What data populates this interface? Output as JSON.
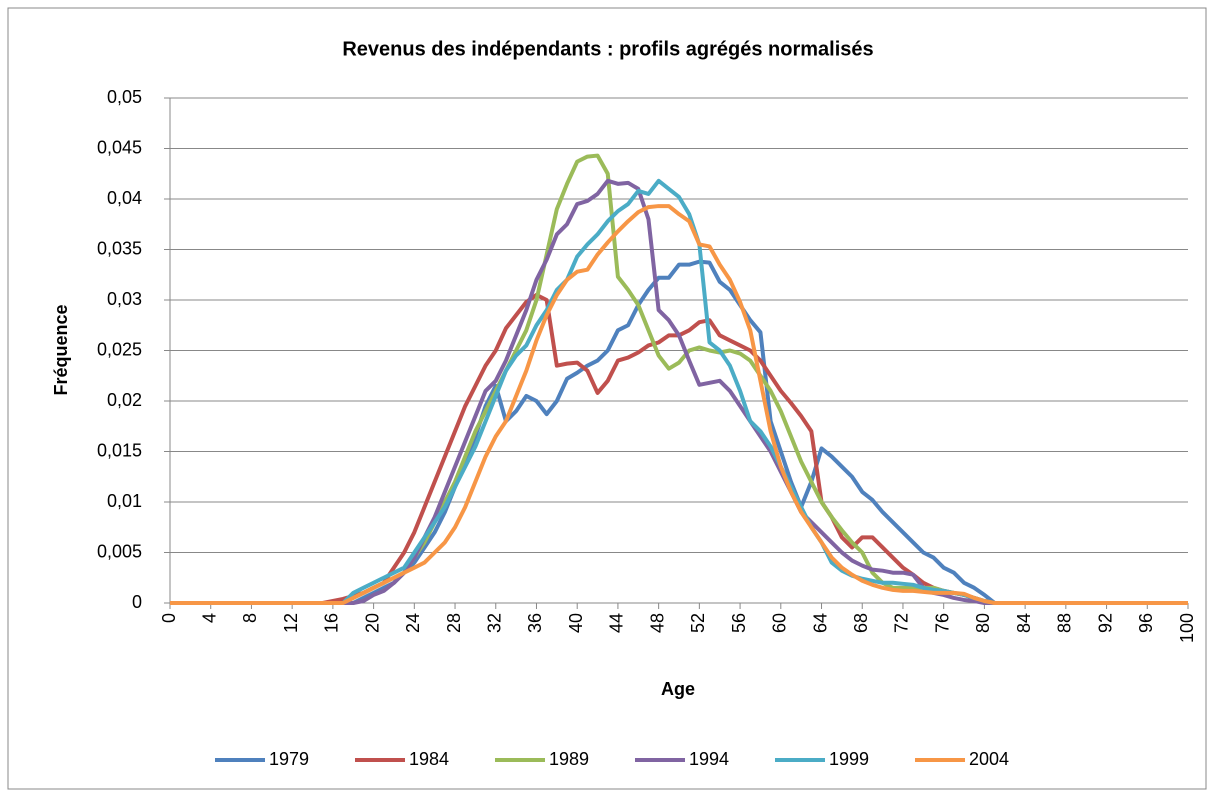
{
  "chart_data": {
    "type": "line",
    "title": "Revenus des indépendants : profils agrégés normalisés",
    "xlabel": "Age",
    "ylabel": "Fréquence",
    "x": [
      0,
      1,
      2,
      3,
      4,
      5,
      6,
      7,
      8,
      9,
      10,
      11,
      12,
      13,
      14,
      15,
      16,
      17,
      18,
      19,
      20,
      21,
      22,
      23,
      24,
      25,
      26,
      27,
      28,
      29,
      30,
      31,
      32,
      33,
      34,
      35,
      36,
      37,
      38,
      39,
      40,
      41,
      42,
      43,
      44,
      45,
      46,
      47,
      48,
      49,
      50,
      51,
      52,
      53,
      54,
      55,
      56,
      57,
      58,
      59,
      60,
      61,
      62,
      63,
      64,
      65,
      66,
      67,
      68,
      69,
      70,
      71,
      72,
      73,
      74,
      75,
      76,
      77,
      78,
      79,
      80,
      81,
      82,
      83,
      84,
      85,
      86,
      87,
      88,
      89,
      90,
      91,
      92,
      93,
      94,
      95,
      96,
      97,
      98,
      99,
      100
    ],
    "xlim": [
      0,
      100
    ],
    "xticks": [
      0,
      4,
      8,
      12,
      16,
      20,
      24,
      28,
      32,
      36,
      40,
      44,
      48,
      52,
      56,
      60,
      64,
      68,
      72,
      76,
      80,
      84,
      88,
      92,
      96,
      100
    ],
    "ylim": [
      0,
      0.05
    ],
    "yticks": [
      0,
      {
        "value": 0.005,
        "label": "0,005"
      },
      {
        "value": 0.01,
        "label": "0,01"
      },
      {
        "value": 0.015,
        "label": "0,015"
      },
      {
        "value": 0.02,
        "label": "0,02"
      },
      {
        "value": 0.025,
        "label": "0,025"
      },
      {
        "value": 0.03,
        "label": "0,03"
      },
      {
        "value": 0.035,
        "label": "0,035"
      },
      {
        "value": 0.04,
        "label": "0,04"
      },
      {
        "value": 0.045,
        "label": "0,045"
      },
      {
        "value": 0.05,
        "label": "0,05"
      }
    ],
    "grid": true,
    "legend": "bottom",
    "series": [
      {
        "name": "1979",
        "color": "#4f81bd",
        "values": [
          0,
          0,
          0,
          0,
          0,
          0,
          0,
          0,
          0,
          0,
          0,
          0,
          0,
          0,
          0,
          0,
          0,
          0,
          0,
          0.0005,
          0.001,
          0.0015,
          0.002,
          0.003,
          0.004,
          0.0055,
          0.007,
          0.009,
          0.0115,
          0.014,
          0.0165,
          0.0195,
          0.0215,
          0.018,
          0.019,
          0.0205,
          0.02,
          0.0187,
          0.02,
          0.0222,
          0.0228,
          0.0235,
          0.024,
          0.025,
          0.027,
          0.0275,
          0.0295,
          0.031,
          0.0322,
          0.0322,
          0.0335,
          0.0335,
          0.0338,
          0.0337,
          0.0318,
          0.031,
          0.0295,
          0.028,
          0.0268,
          0.018,
          0.015,
          0.012,
          0.0095,
          0.012,
          0.0153,
          0.0145,
          0.0135,
          0.0125,
          0.011,
          0.0102,
          0.009,
          0.008,
          0.007,
          0.006,
          0.005,
          0.0045,
          0.0035,
          0.003,
          0.002,
          0.0015,
          0.0008,
          0,
          0,
          0,
          0,
          0,
          0,
          0,
          0,
          0,
          0,
          0,
          0,
          0,
          0,
          0,
          0,
          0,
          0,
          0,
          0
        ]
      },
      {
        "name": "1984",
        "color": "#c0504d",
        "values": [
          0,
          0,
          0,
          0,
          0,
          0,
          0,
          0,
          0,
          0,
          0,
          0,
          0,
          0,
          0,
          0,
          0.0002,
          0.0004,
          0.0007,
          0.001,
          0.0015,
          0.002,
          0.0035,
          0.005,
          0.007,
          0.0095,
          0.012,
          0.0145,
          0.017,
          0.0195,
          0.0215,
          0.0235,
          0.025,
          0.0272,
          0.0285,
          0.0298,
          0.0305,
          0.03,
          0.0235,
          0.0237,
          0.0238,
          0.023,
          0.0208,
          0.022,
          0.024,
          0.0243,
          0.0248,
          0.0255,
          0.0258,
          0.0265,
          0.0265,
          0.027,
          0.0278,
          0.028,
          0.0265,
          0.026,
          0.0255,
          0.025,
          0.024,
          0.0225,
          0.021,
          0.0198,
          0.0185,
          0.017,
          0.01,
          0.0085,
          0.0065,
          0.0055,
          0.0065,
          0.0065,
          0.0055,
          0.0045,
          0.0035,
          0.0028,
          0.002,
          0.0015,
          0.0012,
          0.001,
          0.0008,
          0.0005,
          0.0002,
          0,
          0,
          0,
          0,
          0,
          0,
          0,
          0,
          0,
          0,
          0,
          0,
          0,
          0,
          0,
          0,
          0,
          0,
          0,
          0
        ]
      },
      {
        "name": "1989",
        "color": "#9bbb59",
        "values": [
          0,
          0,
          0,
          0,
          0,
          0,
          0,
          0,
          0,
          0,
          0,
          0,
          0,
          0,
          0,
          0,
          0,
          0,
          0.0005,
          0.001,
          0.0015,
          0.002,
          0.0025,
          0.003,
          0.0045,
          0.006,
          0.008,
          0.01,
          0.012,
          0.0145,
          0.017,
          0.019,
          0.021,
          0.023,
          0.025,
          0.027,
          0.03,
          0.0345,
          0.039,
          0.0415,
          0.0437,
          0.0442,
          0.0443,
          0.0425,
          0.0323,
          0.031,
          0.0295,
          0.027,
          0.0245,
          0.0232,
          0.0238,
          0.025,
          0.0253,
          0.025,
          0.0248,
          0.025,
          0.0247,
          0.024,
          0.0225,
          0.021,
          0.019,
          0.0165,
          0.014,
          0.012,
          0.01,
          0.0085,
          0.0072,
          0.006,
          0.005,
          0.003,
          0.002,
          0.0015,
          0.0015,
          0.0015,
          0.0015,
          0.0015,
          0.0012,
          0.001,
          0.0008,
          0.0005,
          0.0002,
          0,
          0,
          0,
          0,
          0,
          0,
          0,
          0,
          0,
          0,
          0,
          0,
          0,
          0,
          0,
          0,
          0,
          0,
          0,
          0
        ]
      },
      {
        "name": "1994",
        "color": "#8064a2",
        "values": [
          0,
          0,
          0,
          0,
          0,
          0,
          0,
          0,
          0,
          0,
          0,
          0,
          0,
          0,
          0,
          0,
          0,
          0,
          0,
          0.0002,
          0.0008,
          0.0012,
          0.002,
          0.003,
          0.0045,
          0.0065,
          0.0085,
          0.011,
          0.0135,
          0.016,
          0.0185,
          0.021,
          0.022,
          0.024,
          0.0265,
          0.029,
          0.032,
          0.034,
          0.0365,
          0.0375,
          0.0395,
          0.0398,
          0.0405,
          0.0418,
          0.0415,
          0.0416,
          0.041,
          0.038,
          0.029,
          0.028,
          0.0265,
          0.024,
          0.0216,
          0.0218,
          0.022,
          0.021,
          0.0195,
          0.018,
          0.0165,
          0.015,
          0.013,
          0.011,
          0.009,
          0.008,
          0.007,
          0.006,
          0.005,
          0.0042,
          0.0037,
          0.0033,
          0.0032,
          0.003,
          0.003,
          0.0028,
          0.0015,
          0.001,
          0.0008,
          0.0005,
          0.0003,
          0.0002,
          0,
          0,
          0,
          0,
          0,
          0,
          0,
          0,
          0,
          0,
          0,
          0,
          0,
          0,
          0,
          0,
          0,
          0,
          0,
          0,
          0
        ]
      },
      {
        "name": "1999",
        "color": "#4bacc6",
        "values": [
          0,
          0,
          0,
          0,
          0,
          0,
          0,
          0,
          0,
          0,
          0,
          0,
          0,
          0,
          0,
          0,
          0,
          0,
          0.001,
          0.0015,
          0.002,
          0.0025,
          0.003,
          0.0035,
          0.005,
          0.0065,
          0.008,
          0.0095,
          0.0115,
          0.0135,
          0.0155,
          0.018,
          0.0205,
          0.023,
          0.0245,
          0.0255,
          0.0275,
          0.029,
          0.031,
          0.032,
          0.0343,
          0.0355,
          0.0365,
          0.0378,
          0.0388,
          0.0395,
          0.0408,
          0.0405,
          0.0418,
          0.041,
          0.0402,
          0.0385,
          0.0355,
          0.0258,
          0.025,
          0.0235,
          0.021,
          0.018,
          0.017,
          0.0155,
          0.0135,
          0.0115,
          0.0095,
          0.0075,
          0.006,
          0.004,
          0.0032,
          0.0027,
          0.0024,
          0.0022,
          0.002,
          0.002,
          0.0019,
          0.0018,
          0.0015,
          0.0013,
          0.0012,
          0.001,
          0.0008,
          0.0005,
          0.0002,
          0,
          0,
          0,
          0,
          0,
          0,
          0,
          0,
          0,
          0,
          0,
          0,
          0,
          0,
          0,
          0,
          0,
          0,
          0,
          0
        ]
      },
      {
        "name": "2004",
        "color": "#f79646",
        "values": [
          0,
          0,
          0,
          0,
          0,
          0,
          0,
          0,
          0,
          0,
          0,
          0,
          0,
          0,
          0,
          0,
          0,
          0,
          0.0005,
          0.001,
          0.0015,
          0.002,
          0.0025,
          0.003,
          0.0035,
          0.004,
          0.005,
          0.006,
          0.0075,
          0.0095,
          0.012,
          0.0145,
          0.0165,
          0.018,
          0.0205,
          0.023,
          0.026,
          0.0285,
          0.0305,
          0.032,
          0.0328,
          0.033,
          0.0345,
          0.0357,
          0.0368,
          0.0378,
          0.0387,
          0.0392,
          0.0393,
          0.0393,
          0.0385,
          0.0378,
          0.0355,
          0.0353,
          0.0335,
          0.032,
          0.0298,
          0.027,
          0.022,
          0.017,
          0.0135,
          0.011,
          0.009,
          0.0075,
          0.006,
          0.0045,
          0.0035,
          0.0028,
          0.0022,
          0.0018,
          0.0015,
          0.0013,
          0.0012,
          0.0012,
          0.0011,
          0.001,
          0.001,
          0.001,
          0.0009,
          0.0005,
          0.0002,
          0,
          0,
          0,
          0,
          0,
          0,
          0,
          0,
          0,
          0,
          0,
          0,
          0,
          0,
          0,
          0,
          0,
          0,
          0,
          0
        ]
      }
    ]
  }
}
